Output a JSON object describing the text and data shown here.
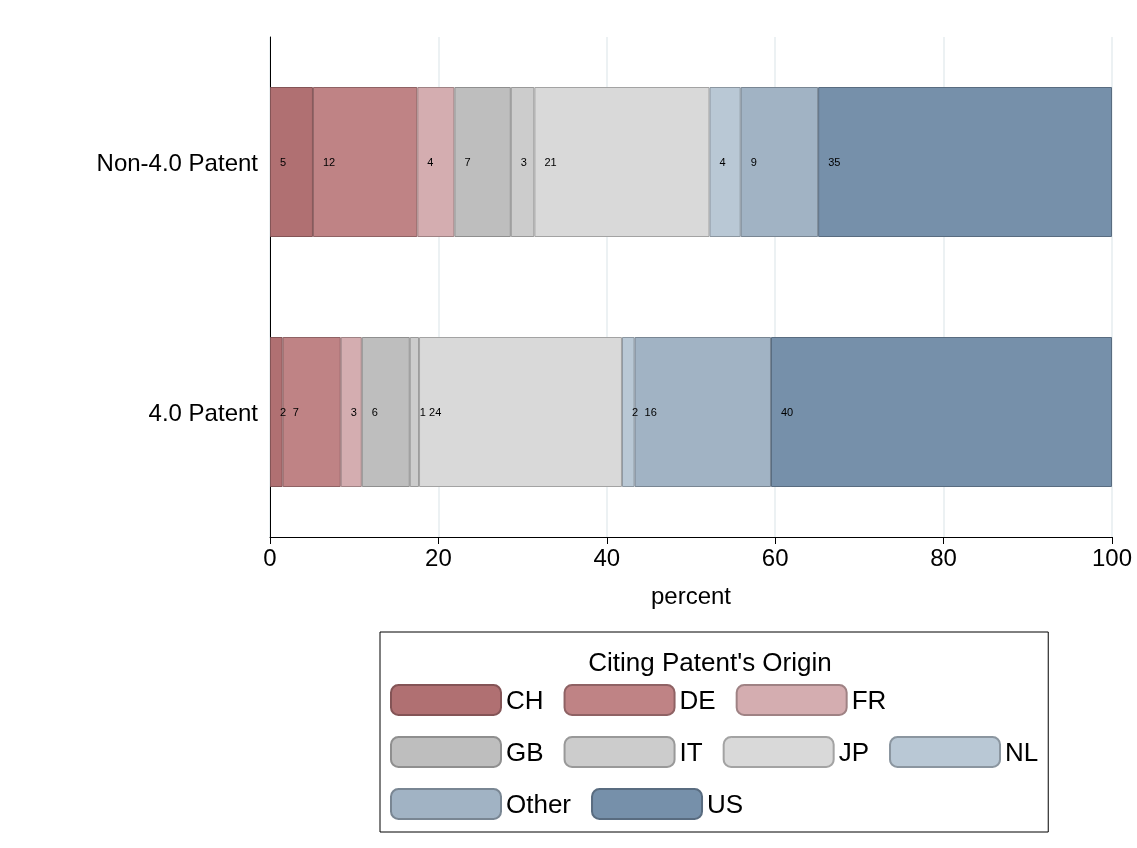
{
  "chart_data": {
    "type": "bar",
    "orientation": "horizontal",
    "stacked": true,
    "xlabel": "percent",
    "legend_title": "Citing Patent's Origin",
    "legend": "bottom",
    "grid": "x",
    "categories": [
      "Non-4.0 Patent",
      "4.0 Patent"
    ],
    "xlim": [
      0,
      100
    ],
    "xticks": [
      0,
      20,
      40,
      60,
      80,
      100
    ],
    "series": [
      {
        "name": "CH",
        "color": "#b07072",
        "values": [
          5.1,
          1.5
        ],
        "value_labels": [
          "5",
          "2"
        ]
      },
      {
        "name": "DE",
        "color": "#bf8385",
        "values": [
          12.4,
          6.9
        ],
        "value_labels": [
          "12",
          "7"
        ]
      },
      {
        "name": "FR",
        "color": "#d4adb0",
        "values": [
          4.4,
          2.5
        ],
        "value_labels": [
          "4",
          "3"
        ]
      },
      {
        "name": "GB",
        "color": "#bebebe",
        "values": [
          6.7,
          5.7
        ],
        "value_labels": [
          "7",
          "6"
        ]
      },
      {
        "name": "IT",
        "color": "#cccccc",
        "values": [
          2.8,
          1.1
        ],
        "value_labels": [
          "3",
          "1"
        ]
      },
      {
        "name": "JP",
        "color": "#d9d9d9",
        "values": [
          20.8,
          24.1
        ],
        "value_labels": [
          "21",
          "24"
        ]
      },
      {
        "name": "NL",
        "color": "#b9c8d5",
        "values": [
          3.7,
          1.5
        ],
        "value_labels": [
          "4",
          "2"
        ]
      },
      {
        "name": "Other",
        "color": "#a1b3c4",
        "values": [
          9.2,
          16.2
        ],
        "value_labels": [
          "9",
          "16"
        ]
      },
      {
        "name": "US",
        "color": "#7690aa",
        "values": [
          34.9,
          40.5
        ],
        "value_labels": [
          "35",
          "40"
        ]
      }
    ]
  }
}
